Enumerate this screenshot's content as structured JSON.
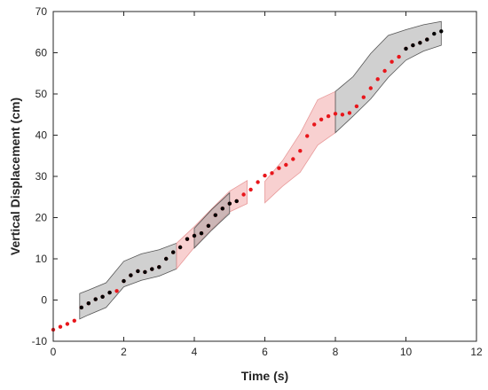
{
  "chart_data": {
    "type": "scatter",
    "title": "",
    "xlabel": "Time (s)",
    "ylabel": "Vertical Displacement (cm)",
    "xlim": [
      0,
      12
    ],
    "ylim": [
      -10,
      70
    ],
    "xticks": [
      0,
      2,
      4,
      6,
      8,
      10,
      12
    ],
    "yticks": [
      -10,
      0,
      10,
      20,
      30,
      40,
      50,
      60,
      70
    ],
    "grid": false,
    "legend": "none",
    "colors": {
      "red_points": "#e8161b",
      "black_points": "#000000",
      "gray_band": "#b3b3b3",
      "pink_band": "#f5b0b0"
    },
    "bands": [
      {
        "color": "gray",
        "x": [
          0.75,
          1.0,
          1.5,
          2.0,
          2.5,
          3.0,
          3.5
        ],
        "upper": [
          1.6,
          2.4,
          4.2,
          9.4,
          11.2,
          12.2,
          13.8
        ],
        "lower": [
          -4.6,
          -3.6,
          -1.8,
          3.2,
          4.8,
          5.8,
          7.6
        ]
      },
      {
        "color": "pink",
        "x": [
          3.5,
          4.0,
          4.5,
          5.0,
          5.5
        ],
        "upper": [
          13.8,
          17.8,
          22.2,
          26.4,
          29.0
        ],
        "lower": [
          7.6,
          12.8,
          17.2,
          21.4,
          23.4
        ]
      },
      {
        "color": "gray",
        "x": [
          4.0,
          4.5,
          5.0
        ],
        "upper": [
          17.4,
          22.0,
          26.0
        ],
        "lower": [
          12.6,
          17.0,
          21.0
        ]
      },
      {
        "color": "pink",
        "x": [
          6.0,
          6.5,
          7.0,
          7.5,
          8.0
        ],
        "upper": [
          28.8,
          33.8,
          40.4,
          48.6,
          50.6
        ],
        "lower": [
          23.6,
          27.6,
          31.0,
          37.6,
          40.6
        ]
      },
      {
        "color": "gray",
        "x": [
          8.0,
          8.5,
          9.0,
          9.5,
          10.0,
          10.5,
          11.0
        ],
        "upper": [
          50.6,
          54.2,
          59.8,
          64.2,
          65.6,
          66.8,
          67.6
        ],
        "lower": [
          40.6,
          44.6,
          48.8,
          54.0,
          58.2,
          60.4,
          61.8
        ]
      }
    ],
    "series": [
      {
        "color": "red",
        "x": [
          0.0,
          0.2,
          0.4,
          0.6,
          0.8,
          1.0,
          1.2,
          1.4,
          1.6,
          1.8,
          2.0,
          2.2,
          2.4,
          2.6,
          2.8,
          3.0,
          3.2,
          3.4,
          3.6,
          3.8,
          4.0,
          4.2,
          4.4,
          4.6,
          4.8,
          5.0,
          5.2,
          5.4,
          5.6,
          5.8,
          6.0,
          6.2,
          6.4,
          6.6,
          6.8,
          7.0,
          7.2,
          7.4,
          7.6,
          7.8,
          8.0,
          8.2,
          8.4,
          8.6,
          8.8,
          9.0,
          9.2,
          9.4,
          9.6,
          9.8,
          10.0,
          10.2,
          10.4,
          10.6
        ],
        "y": [
          -7.2,
          -6.5,
          -5.8,
          -5.0,
          -1.8,
          -0.8,
          0.2,
          0.8,
          1.8,
          2.2,
          4.6,
          6.0,
          7.0,
          6.8,
          7.5,
          8.0,
          10.0,
          11.6,
          12.8,
          14.8,
          15.6,
          16.2,
          18.0,
          20.6,
          22.2,
          23.4,
          24.0,
          25.6,
          26.8,
          28.6,
          30.2,
          30.8,
          32.0,
          32.8,
          34.2,
          36.2,
          39.8,
          42.6,
          43.8,
          44.6,
          45.2,
          45.0,
          45.4,
          47.0,
          49.2,
          51.4,
          53.6,
          55.6,
          57.8,
          59.0,
          61.0,
          61.8,
          62.4,
          63.2
        ]
      },
      {
        "color": "black",
        "x": [
          0.8,
          1.0,
          1.2,
          1.4,
          1.6,
          2.0,
          2.2,
          2.4,
          2.6,
          2.8,
          3.0,
          3.2,
          3.4,
          3.6,
          3.8,
          4.0,
          4.2,
          4.4,
          4.6,
          4.8,
          5.0,
          5.2,
          10.0,
          10.2,
          10.4,
          10.6,
          10.8,
          11.0
        ],
        "y": [
          -1.8,
          -0.8,
          0.2,
          0.8,
          1.8,
          4.6,
          6.0,
          7.0,
          6.8,
          7.5,
          8.0,
          10.0,
          11.6,
          12.8,
          14.8,
          15.6,
          16.2,
          18.0,
          20.6,
          22.2,
          23.4,
          24.0,
          61.0,
          61.8,
          62.4,
          63.2,
          64.6,
          65.2
        ]
      }
    ]
  }
}
